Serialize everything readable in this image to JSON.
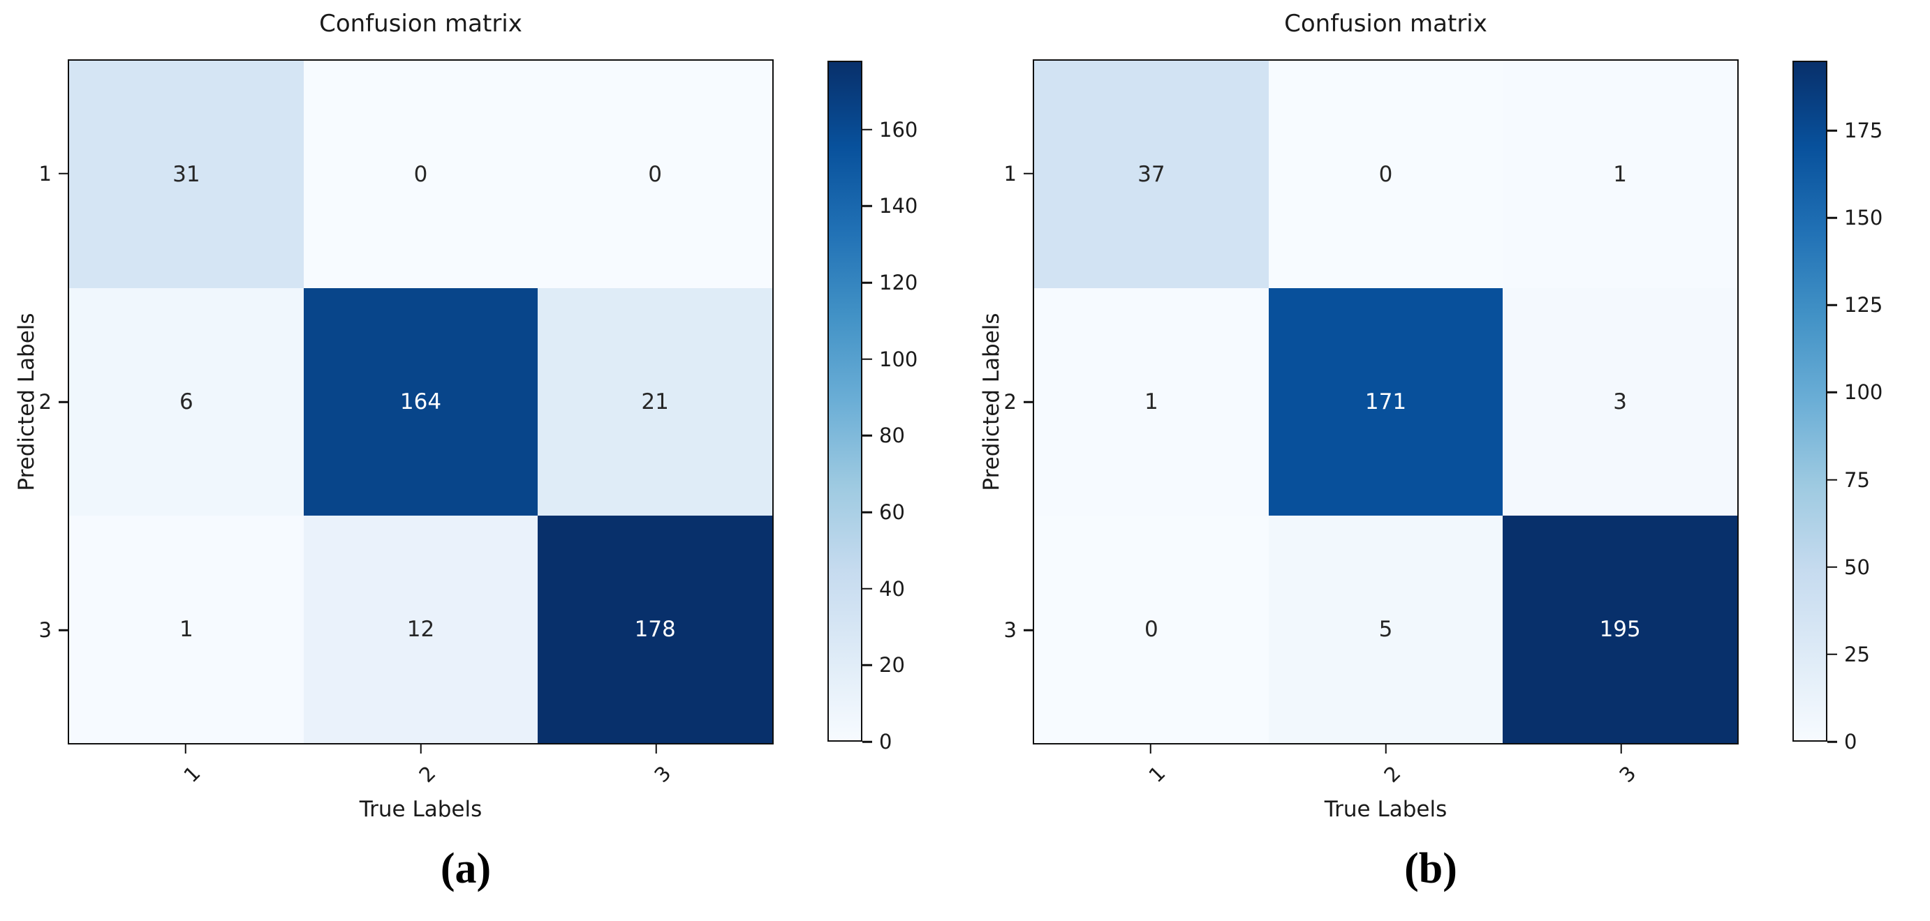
{
  "colors": {
    "background": "#ffffff",
    "text": "#1a1a1a",
    "spine": "#0f0f0f",
    "cell_text_light": "#ffffff",
    "cell_text_dark": "#262626",
    "colormap_stops": [
      "#f7fbff",
      "#deebf7",
      "#c6dbef",
      "#9ecae1",
      "#6baed6",
      "#4292c6",
      "#2171b5",
      "#08519c",
      "#08306b"
    ]
  },
  "chart_data": [
    {
      "type": "heatmap",
      "title": "Confusion matrix",
      "xlabel": "True Labels",
      "ylabel": "Predicted Labels",
      "x_ticklabels": [
        "1",
        "2",
        "3"
      ],
      "y_ticklabels": [
        "1",
        "2",
        "3"
      ],
      "values": [
        [
          31,
          0,
          0
        ],
        [
          6,
          164,
          21
        ],
        [
          1,
          12,
          178
        ]
      ],
      "vmin": 0,
      "vmax": 178,
      "colormap": "Blues",
      "colorbar_ticks": [
        0,
        20,
        40,
        60,
        80,
        100,
        120,
        140,
        160
      ],
      "x_tick_rotation": 45,
      "grid": false,
      "caption": "(a)"
    },
    {
      "type": "heatmap",
      "title": "Confusion matrix",
      "xlabel": "True Labels",
      "ylabel": "Predicted Labels",
      "x_ticklabels": [
        "1",
        "2",
        "3"
      ],
      "y_ticklabels": [
        "1",
        "2",
        "3"
      ],
      "values": [
        [
          37,
          0,
          1
        ],
        [
          1,
          171,
          3
        ],
        [
          0,
          5,
          195
        ]
      ],
      "vmin": 0,
      "vmax": 195,
      "colormap": "Blues",
      "colorbar_ticks": [
        0,
        25,
        50,
        75,
        100,
        125,
        150,
        175
      ],
      "x_tick_rotation": 45,
      "grid": false,
      "caption": "(b)"
    }
  ]
}
